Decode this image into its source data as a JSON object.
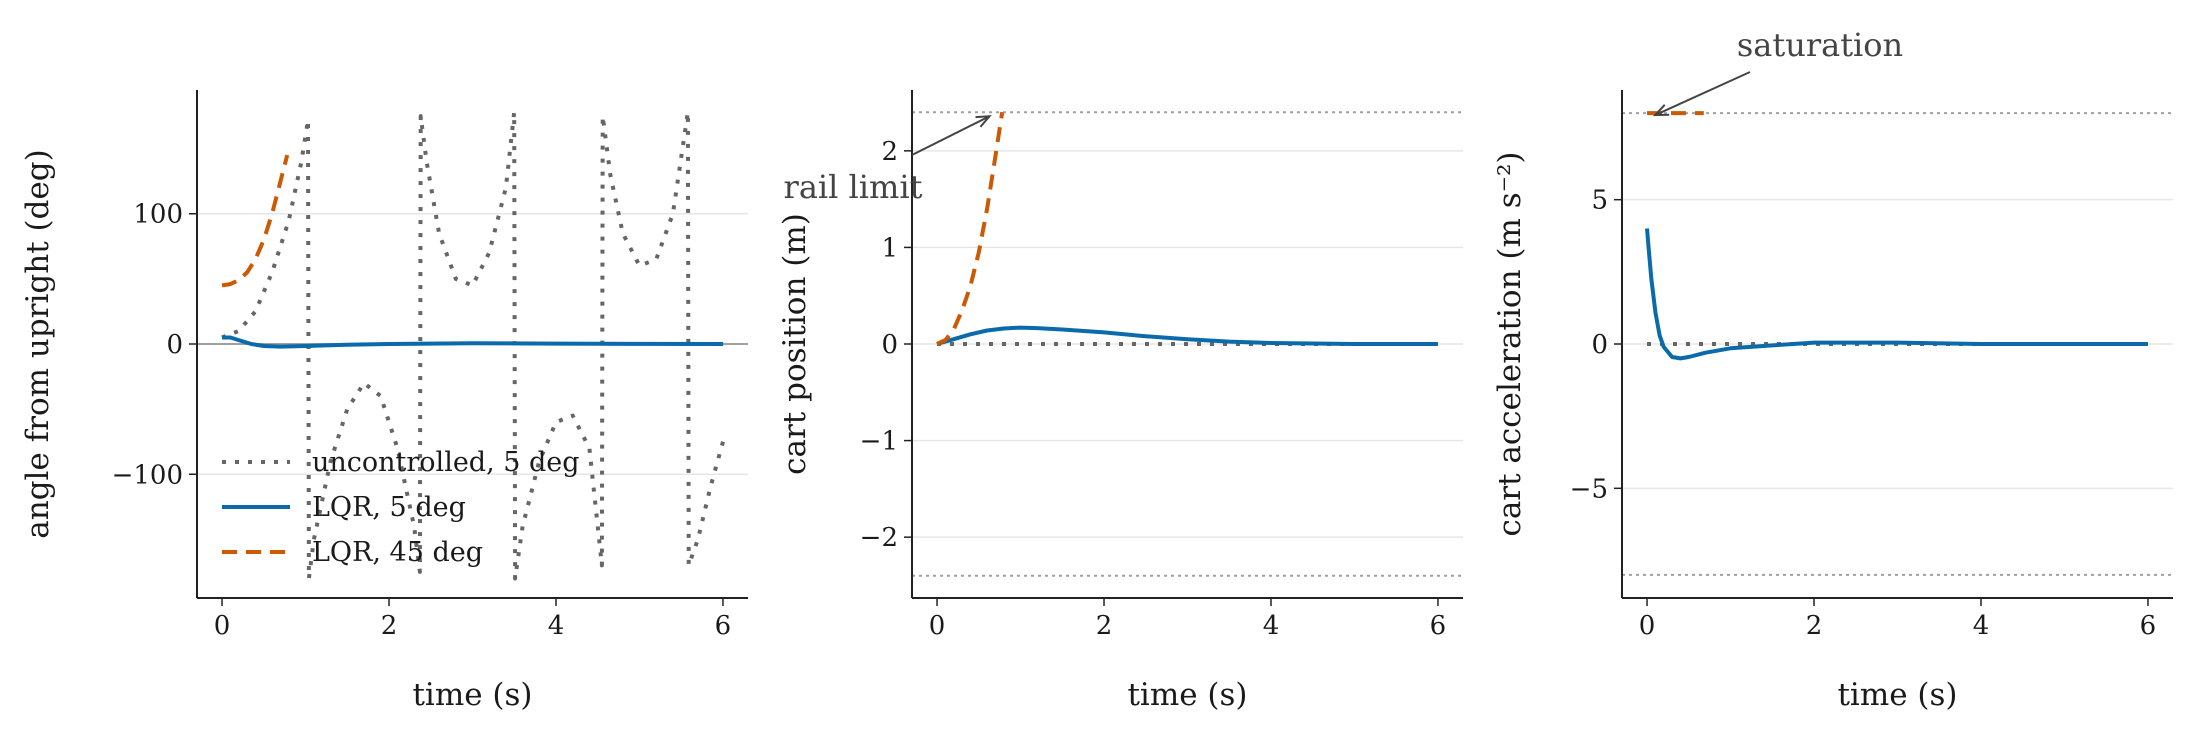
{
  "colors": {
    "uncontrolled": "#666666",
    "lqr5": "#0a6aab",
    "lqr45": "#cc5a05",
    "grid": "#e6e6e6",
    "reference": "#a0a0a0",
    "annotation": "#444444"
  },
  "chart_data": [
    {
      "type": "line",
      "xlabel": "time (s)",
      "ylabel": "angle from upright (deg)",
      "xlim": [
        -0.3,
        6.3
      ],
      "ylim": [
        -195,
        195
      ],
      "xticks": [
        0,
        2,
        4,
        6
      ],
      "yticks": [
        -100,
        0,
        100
      ],
      "grid": "horizontal",
      "reference_lines": [
        0
      ],
      "legend_position": "lower-left",
      "series": [
        {
          "name": "uncontrolled, 5 deg",
          "style": "dotted",
          "color": "#666666",
          "x": [
            0,
            0.2,
            0.4,
            0.6,
            0.8,
            0.95,
            1.03,
            1.04,
            1.1,
            1.3,
            1.5,
            1.7,
            1.9,
            2.1,
            2.3,
            2.37,
            2.38,
            2.45,
            2.6,
            2.8,
            3.0,
            3.2,
            3.4,
            3.5,
            3.51,
            3.6,
            3.8,
            4.0,
            4.2,
            4.4,
            4.55,
            4.56,
            4.65,
            4.8,
            5.0,
            5.2,
            5.4,
            5.58,
            5.59,
            5.7,
            5.85,
            6.0
          ],
          "y": [
            5,
            10,
            25,
            55,
            95,
            140,
            172,
            -180,
            -150,
            -90,
            -50,
            -30,
            -40,
            -80,
            -140,
            -175,
            175,
            140,
            85,
            50,
            45,
            70,
            120,
            178,
            -180,
            -140,
            -90,
            -60,
            -55,
            -80,
            -170,
            175,
            130,
            85,
            60,
            65,
            100,
            178,
            -170,
            -150,
            -110,
            -75
          ]
        },
        {
          "name": "LQR, 5 deg",
          "style": "solid",
          "color": "#0a6aab",
          "x": [
            0,
            0.1,
            0.2,
            0.35,
            0.5,
            0.7,
            1.0,
            1.5,
            2.0,
            3.0,
            4.0,
            5.0,
            6.0
          ],
          "y": [
            5,
            5,
            3,
            0,
            -1.5,
            -2,
            -1.5,
            -0.5,
            0,
            0.5,
            0.3,
            0.1,
            0
          ]
        },
        {
          "name": "LQR, 45 deg",
          "style": "dashed",
          "color": "#cc5a05",
          "x": [
            0,
            0.1,
            0.2,
            0.3,
            0.4,
            0.5,
            0.6,
            0.7,
            0.78
          ],
          "y": [
            45,
            46,
            49,
            55,
            65,
            80,
            100,
            125,
            145
          ]
        }
      ]
    },
    {
      "type": "line",
      "xlabel": "time (s)",
      "ylabel": "cart position (m)",
      "xlim": [
        -0.3,
        6.3
      ],
      "ylim": [
        -2.63,
        2.63
      ],
      "xticks": [
        0,
        2,
        4,
        6
      ],
      "yticks": [
        -2,
        -1,
        0,
        1,
        2
      ],
      "grid": "horizontal",
      "reference_lines": [
        2.4,
        -2.4
      ],
      "annotations": [
        {
          "text": "rail limit",
          "x": 0.7,
          "y": 2.4
        }
      ],
      "series": [
        {
          "name": "uncontrolled, 5 deg",
          "style": "dotted",
          "color": "#666666",
          "x": [
            0,
            1,
            2,
            3,
            4,
            5,
            6
          ],
          "y": [
            0,
            0,
            0,
            0,
            0,
            0,
            0
          ]
        },
        {
          "name": "LQR, 5 deg",
          "style": "solid",
          "color": "#0a6aab",
          "x": [
            0,
            0.2,
            0.4,
            0.6,
            0.8,
            1.0,
            1.2,
            1.5,
            2.0,
            2.5,
            3.0,
            3.5,
            4.0,
            4.5,
            5.0,
            6.0
          ],
          "y": [
            0,
            0.05,
            0.1,
            0.14,
            0.16,
            0.17,
            0.165,
            0.15,
            0.12,
            0.08,
            0.05,
            0.025,
            0.01,
            0.005,
            0,
            0
          ]
        },
        {
          "name": "LQR, 45 deg",
          "style": "dashed",
          "color": "#cc5a05",
          "x": [
            0,
            0.1,
            0.2,
            0.3,
            0.4,
            0.5,
            0.6,
            0.7,
            0.78
          ],
          "y": [
            0,
            0.04,
            0.15,
            0.35,
            0.6,
            0.95,
            1.4,
            1.95,
            2.4
          ]
        }
      ]
    },
    {
      "type": "line",
      "xlabel": "time (s)",
      "ylabel": "cart acceleration (m s⁻²)",
      "xlim": [
        -0.3,
        6.3
      ],
      "ylim": [
        -8.8,
        8.8
      ],
      "xticks": [
        0,
        2,
        4,
        6
      ],
      "yticks": [
        -5,
        0,
        5
      ],
      "grid": "horizontal",
      "reference_lines": [
        8,
        -8
      ],
      "annotations": [
        {
          "text": "saturation",
          "x": 0.05,
          "y": 8
        }
      ],
      "series": [
        {
          "name": "uncontrolled, 5 deg",
          "style": "dotted",
          "color": "#666666",
          "x": [
            0,
            1,
            2,
            3,
            4,
            5,
            6
          ],
          "y": [
            0,
            0,
            0,
            0,
            0,
            0,
            0
          ]
        },
        {
          "name": "LQR, 5 deg",
          "style": "solid",
          "color": "#0a6aab",
          "x": [
            0,
            0.02,
            0.05,
            0.1,
            0.15,
            0.2,
            0.3,
            0.4,
            0.5,
            0.7,
            1.0,
            1.5,
            2.0,
            3.0,
            4.0,
            5.0,
            6.0
          ],
          "y": [
            4,
            3.3,
            2.3,
            1.1,
            0.3,
            -0.1,
            -0.45,
            -0.5,
            -0.45,
            -0.3,
            -0.15,
            -0.05,
            0.05,
            0.05,
            0,
            0,
            0
          ]
        },
        {
          "name": "LQR, 45 deg",
          "style": "dashed",
          "color": "#cc5a05",
          "x": [
            0,
            0.2,
            0.4,
            0.6,
            0.68
          ],
          "y": [
            8,
            8,
            8,
            8,
            8
          ]
        }
      ]
    }
  ]
}
